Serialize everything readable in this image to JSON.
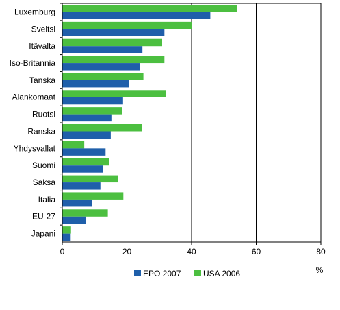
{
  "chart_data": {
    "type": "bar",
    "orientation": "horizontal",
    "categories": [
      "Luxemburg",
      "Sveitsi",
      "Itävalta",
      "Iso-Britannia",
      "Tanska",
      "Alankomaat",
      "Ruotsi",
      "Ranska",
      "Yhdysvallat",
      "Suomi",
      "Saksa",
      "Italia",
      "EU-27",
      "Japani"
    ],
    "series": [
      {
        "name": "EPO 2007",
        "color": "#1f5faa",
        "values": [
          45.8,
          31.6,
          24.8,
          24.1,
          20.6,
          18.8,
          15.2,
          15.0,
          13.4,
          12.6,
          11.8,
          9.2,
          7.4,
          2.6
        ]
      },
      {
        "name": "USA 2006",
        "color": "#4cbf40",
        "values": [
          54.1,
          40.0,
          30.9,
          31.6,
          25.1,
          32.1,
          18.6,
          24.6,
          6.8,
          14.5,
          17.2,
          18.9,
          14.1,
          2.7
        ]
      }
    ],
    "xticks": [
      "0",
      "20",
      "40",
      "60",
      "80"
    ],
    "xlim": [
      0,
      80
    ],
    "unit_label": "%",
    "grid": "vertical lines at 20, 40, 60",
    "legend": "bottom"
  }
}
